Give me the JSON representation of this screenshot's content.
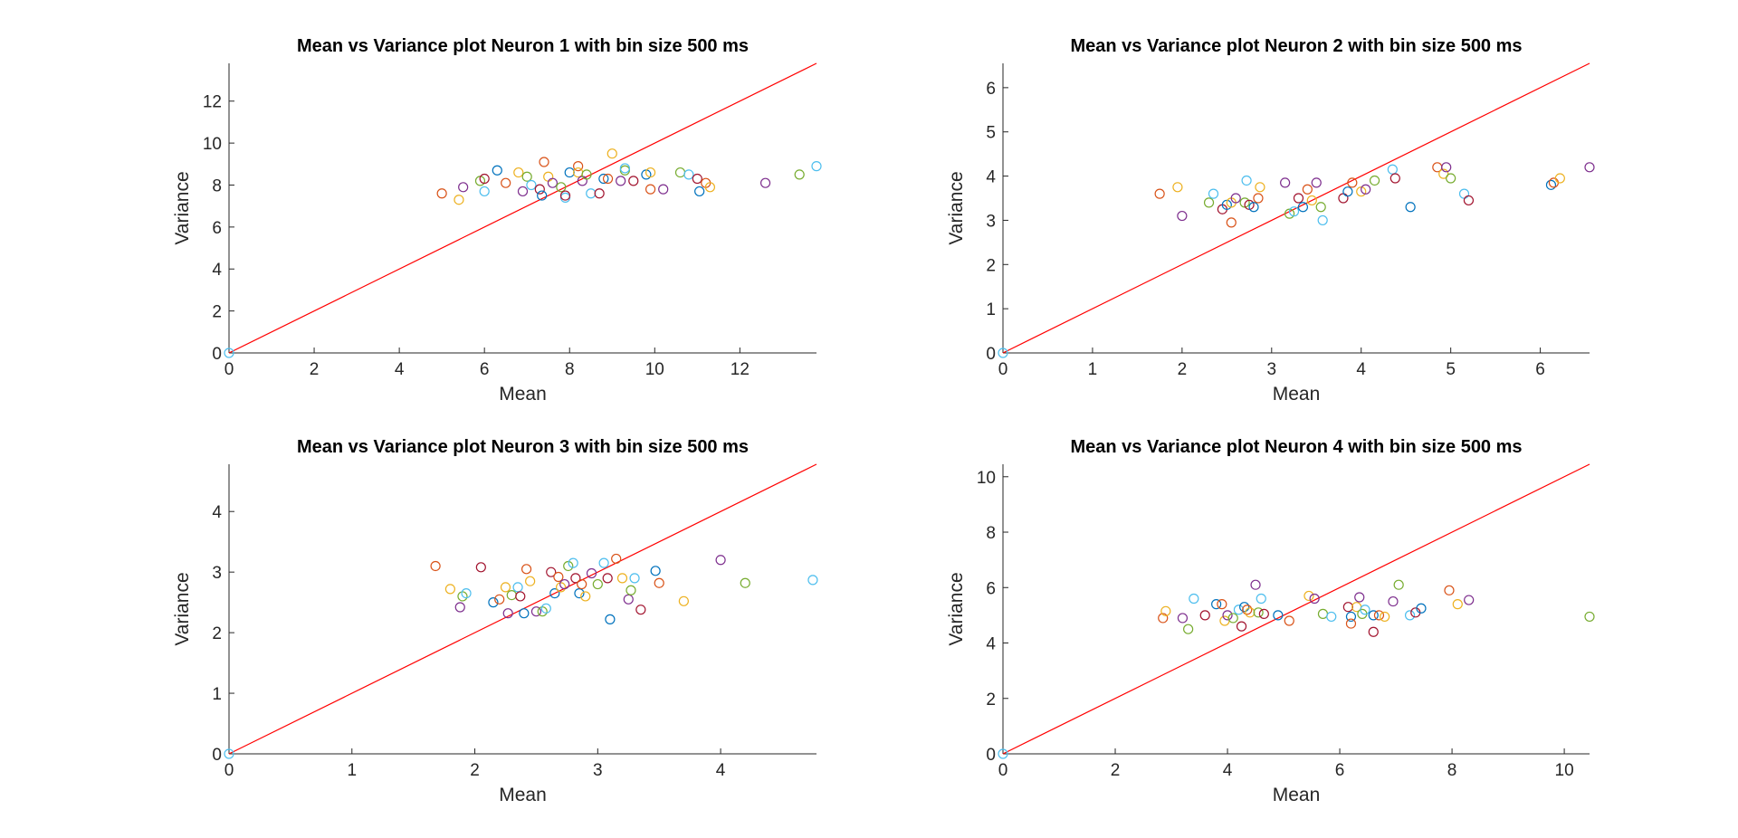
{
  "chart_data": [
    {
      "type": "scatter",
      "title": "Mean vs Variance plot Neuron 1 with  bin size 500 ms",
      "xlabel": "Mean",
      "ylabel": "Variance",
      "xlim": [
        0,
        13.8
      ],
      "ylim": [
        0,
        13.8
      ],
      "xticks": [
        0,
        2,
        4,
        6,
        8,
        10,
        12
      ],
      "yticks": [
        0,
        2,
        4,
        6,
        8,
        10,
        12
      ],
      "grid": false,
      "reference_line": [
        [
          0,
          0
        ],
        [
          13.8,
          13.8
        ]
      ],
      "points": [
        [
          0,
          0
        ],
        [
          5.0,
          7.6
        ],
        [
          5.4,
          7.3
        ],
        [
          5.5,
          7.9
        ],
        [
          5.9,
          8.2
        ],
        [
          6.0,
          7.7
        ],
        [
          6.0,
          8.3
        ],
        [
          6.3,
          8.7
        ],
        [
          6.5,
          8.1
        ],
        [
          6.8,
          8.6
        ],
        [
          6.9,
          7.7
        ],
        [
          7.0,
          8.4
        ],
        [
          7.1,
          8.0
        ],
        [
          7.3,
          7.8
        ],
        [
          7.35,
          7.5
        ],
        [
          7.4,
          9.1
        ],
        [
          7.5,
          8.4
        ],
        [
          7.6,
          8.1
        ],
        [
          7.8,
          7.9
        ],
        [
          7.9,
          7.4
        ],
        [
          7.9,
          7.5
        ],
        [
          8.0,
          8.6
        ],
        [
          8.2,
          8.9
        ],
        [
          8.2,
          8.6
        ],
        [
          8.3,
          8.2
        ],
        [
          8.4,
          8.5
        ],
        [
          8.5,
          7.6
        ],
        [
          8.7,
          7.6
        ],
        [
          8.8,
          8.3
        ],
        [
          8.9,
          8.3
        ],
        [
          9.0,
          9.5
        ],
        [
          9.2,
          8.2
        ],
        [
          9.3,
          8.7
        ],
        [
          9.3,
          8.8
        ],
        [
          9.5,
          8.2
        ],
        [
          9.8,
          8.5
        ],
        [
          9.9,
          7.8
        ],
        [
          9.9,
          8.6
        ],
        [
          10.2,
          7.8
        ],
        [
          10.6,
          8.6
        ],
        [
          10.8,
          8.5
        ],
        [
          11.0,
          8.3
        ],
        [
          11.05,
          7.7
        ],
        [
          11.2,
          8.1
        ],
        [
          11.3,
          7.9
        ],
        [
          12.6,
          8.1
        ],
        [
          13.4,
          8.5
        ],
        [
          13.8,
          8.9
        ]
      ]
    },
    {
      "type": "scatter",
      "title": "Mean vs Variance plot Neuron 2 with  bin size 500 ms",
      "xlabel": "Mean",
      "ylabel": "Variance",
      "xlim": [
        0,
        6.55
      ],
      "ylim": [
        0,
        6.55
      ],
      "xticks": [
        0,
        1,
        2,
        3,
        4,
        5,
        6
      ],
      "yticks": [
        0,
        1,
        2,
        3,
        4,
        5,
        6
      ],
      "grid": false,
      "reference_line": [
        [
          0,
          0
        ],
        [
          6.55,
          6.55
        ]
      ],
      "points": [
        [
          0,
          0
        ],
        [
          1.75,
          3.6
        ],
        [
          1.95,
          3.75
        ],
        [
          2.0,
          3.1
        ],
        [
          2.3,
          3.4
        ],
        [
          2.35,
          3.6
        ],
        [
          2.45,
          3.25
        ],
        [
          2.5,
          3.35
        ],
        [
          2.55,
          2.95
        ],
        [
          2.55,
          3.4
        ],
        [
          2.6,
          3.5
        ],
        [
          2.7,
          3.4
        ],
        [
          2.72,
          3.9
        ],
        [
          2.75,
          3.35
        ],
        [
          2.8,
          3.3
        ],
        [
          2.85,
          3.5
        ],
        [
          2.87,
          3.75
        ],
        [
          3.15,
          3.85
        ],
        [
          3.2,
          3.15
        ],
        [
          3.25,
          3.2
        ],
        [
          3.3,
          3.5
        ],
        [
          3.35,
          3.3
        ],
        [
          3.4,
          3.7
        ],
        [
          3.45,
          3.45
        ],
        [
          3.5,
          3.85
        ],
        [
          3.55,
          3.3
        ],
        [
          3.57,
          3.0
        ],
        [
          3.8,
          3.5
        ],
        [
          3.85,
          3.65
        ],
        [
          3.9,
          3.85
        ],
        [
          4.0,
          3.65
        ],
        [
          4.05,
          3.7
        ],
        [
          4.15,
          3.9
        ],
        [
          4.35,
          4.15
        ],
        [
          4.38,
          3.95
        ],
        [
          4.55,
          3.3
        ],
        [
          4.85,
          4.2
        ],
        [
          4.92,
          4.05
        ],
        [
          4.95,
          4.2
        ],
        [
          5.0,
          3.95
        ],
        [
          5.15,
          3.6
        ],
        [
          5.2,
          3.45
        ],
        [
          6.12,
          3.8
        ],
        [
          6.15,
          3.85
        ],
        [
          6.22,
          3.95
        ],
        [
          6.55,
          4.2
        ]
      ]
    },
    {
      "type": "scatter",
      "title": "Mean vs Variance plot Neuron 3 with  bin size 500 ms",
      "xlabel": "Mean",
      "ylabel": "Variance",
      "xlim": [
        0,
        4.78
      ],
      "ylim": [
        0,
        4.78
      ],
      "xticks": [
        0,
        1,
        2,
        3,
        4
      ],
      "yticks": [
        0,
        1,
        2,
        3,
        4
      ],
      "grid": false,
      "reference_line": [
        [
          0,
          0
        ],
        [
          4.78,
          4.78
        ]
      ],
      "points": [
        [
          0,
          0
        ],
        [
          1.68,
          3.1
        ],
        [
          1.8,
          2.72
        ],
        [
          1.88,
          2.42
        ],
        [
          1.9,
          2.6
        ],
        [
          1.93,
          2.65
        ],
        [
          2.05,
          3.08
        ],
        [
          2.15,
          2.5
        ],
        [
          2.2,
          2.55
        ],
        [
          2.25,
          2.75
        ],
        [
          2.27,
          2.32
        ],
        [
          2.3,
          2.62
        ],
        [
          2.35,
          2.75
        ],
        [
          2.37,
          2.6
        ],
        [
          2.4,
          2.32
        ],
        [
          2.42,
          3.05
        ],
        [
          2.45,
          2.85
        ],
        [
          2.5,
          2.35
        ],
        [
          2.55,
          2.35
        ],
        [
          2.58,
          2.4
        ],
        [
          2.62,
          3.0
        ],
        [
          2.65,
          2.65
        ],
        [
          2.68,
          2.92
        ],
        [
          2.7,
          2.75
        ],
        [
          2.73,
          2.8
        ],
        [
          2.76,
          3.1
        ],
        [
          2.8,
          3.15
        ],
        [
          2.82,
          2.9
        ],
        [
          2.85,
          2.65
        ],
        [
          2.87,
          2.8
        ],
        [
          2.9,
          2.6
        ],
        [
          2.95,
          2.98
        ],
        [
          3.0,
          2.8
        ],
        [
          3.05,
          3.15
        ],
        [
          3.08,
          2.9
        ],
        [
          3.1,
          2.22
        ],
        [
          3.15,
          3.22
        ],
        [
          3.2,
          2.9
        ],
        [
          3.25,
          2.55
        ],
        [
          3.27,
          2.7
        ],
        [
          3.3,
          2.9
        ],
        [
          3.35,
          2.38
        ],
        [
          3.47,
          3.02
        ],
        [
          3.5,
          2.82
        ],
        [
          3.7,
          2.52
        ],
        [
          4.0,
          3.2
        ],
        [
          4.2,
          2.82
        ],
        [
          4.75,
          2.87
        ]
      ]
    },
    {
      "type": "scatter",
      "title": "Mean vs Variance plot Neuron 4 with  bin size 500 ms",
      "xlabel": "Mean",
      "ylabel": "Variance",
      "xlim": [
        0,
        10.45
      ],
      "ylim": [
        0,
        10.45
      ],
      "xticks": [
        0,
        2,
        4,
        6,
        8,
        10
      ],
      "yticks": [
        0,
        2,
        4,
        6,
        8,
        10
      ],
      "grid": false,
      "reference_line": [
        [
          0,
          0
        ],
        [
          10.45,
          10.45
        ]
      ],
      "points": [
        [
          0,
          0
        ],
        [
          2.85,
          4.9
        ],
        [
          2.9,
          5.15
        ],
        [
          3.2,
          4.9
        ],
        [
          3.3,
          4.5
        ],
        [
          3.4,
          5.6
        ],
        [
          3.6,
          5.0
        ],
        [
          3.8,
          5.4
        ],
        [
          3.9,
          5.4
        ],
        [
          3.95,
          4.8
        ],
        [
          4.0,
          5.0
        ],
        [
          4.1,
          4.9
        ],
        [
          4.2,
          5.2
        ],
        [
          4.25,
          4.6
        ],
        [
          4.3,
          5.3
        ],
        [
          4.35,
          5.2
        ],
        [
          4.4,
          5.1
        ],
        [
          4.5,
          6.1
        ],
        [
          4.55,
          5.1
        ],
        [
          4.6,
          5.6
        ],
        [
          4.65,
          5.05
        ],
        [
          4.9,
          5.0
        ],
        [
          5.1,
          4.8
        ],
        [
          5.45,
          5.7
        ],
        [
          5.55,
          5.6
        ],
        [
          5.7,
          5.05
        ],
        [
          5.85,
          4.95
        ],
        [
          6.15,
          5.3
        ],
        [
          6.2,
          4.95
        ],
        [
          6.2,
          4.7
        ],
        [
          6.3,
          5.3
        ],
        [
          6.35,
          5.65
        ],
        [
          6.4,
          5.05
        ],
        [
          6.45,
          5.2
        ],
        [
          6.6,
          4.4
        ],
        [
          6.6,
          5.0
        ],
        [
          6.7,
          5.0
        ],
        [
          6.8,
          4.95
        ],
        [
          6.95,
          5.5
        ],
        [
          7.05,
          6.1
        ],
        [
          7.25,
          5.0
        ],
        [
          7.35,
          5.1
        ],
        [
          7.45,
          5.25
        ],
        [
          7.95,
          5.9
        ],
        [
          8.1,
          5.4
        ],
        [
          8.3,
          5.55
        ],
        [
          10.45,
          4.95
        ]
      ]
    }
  ]
}
